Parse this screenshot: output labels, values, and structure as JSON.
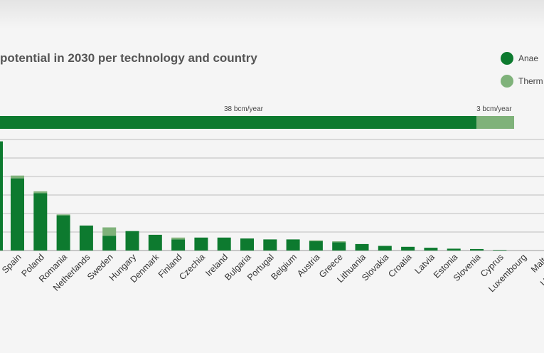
{
  "chart_data": {
    "type": "bar",
    "title": "potential in 2030 per technology and country",
    "colors": {
      "anaerobic": "#0d7a2f",
      "thermal": "#7fb27a"
    },
    "legend": {
      "placement": "top-right",
      "entries": [
        {
          "label": "Anae",
          "color": "#0d7a2f"
        },
        {
          "label": "Therm",
          "color": "#7fb27a"
        }
      ]
    },
    "total_bar": {
      "segments": [
        {
          "series": "anaerobic",
          "value": 38,
          "label": "38 bcm/year"
        },
        {
          "series": "thermal",
          "value": 3,
          "label": "3 bcm/year"
        }
      ]
    },
    "grid": true,
    "categories": [
      "Spain",
      "Poland",
      "Romania",
      "Netherlands",
      "Sweden",
      "Hungary",
      "Denmark",
      "Finland",
      "Czechia",
      "Ireland",
      "Bulgaria",
      "Portugal",
      "Belgium",
      "Austria",
      "Greece",
      "Lithuania",
      "Slovakia",
      "Croatia",
      "Latvia",
      "Estonia",
      "Slovenia",
      "Cyprus",
      "Luxembourg",
      "Malta",
      "United Kin"
    ],
    "series": [
      {
        "key": "anaerobic",
        "values": [
          3.9,
          3.1,
          1.9,
          1.35,
          0.8,
          1.05,
          0.85,
          0.6,
          0.7,
          0.7,
          0.65,
          0.6,
          0.6,
          0.5,
          0.45,
          0.35,
          0.25,
          0.2,
          0.15,
          0.1,
          0.08,
          0.03,
          0,
          0,
          0
        ]
      },
      {
        "key": "thermal",
        "values": [
          0.15,
          0.1,
          0.05,
          0,
          0.45,
          0,
          0,
          0.1,
          0,
          0,
          0,
          0,
          0,
          0.05,
          0.05,
          0,
          0,
          0,
          0,
          0,
          0,
          0,
          0,
          0,
          0
        ]
      }
    ],
    "ylim": [
      0,
      6
    ]
  }
}
